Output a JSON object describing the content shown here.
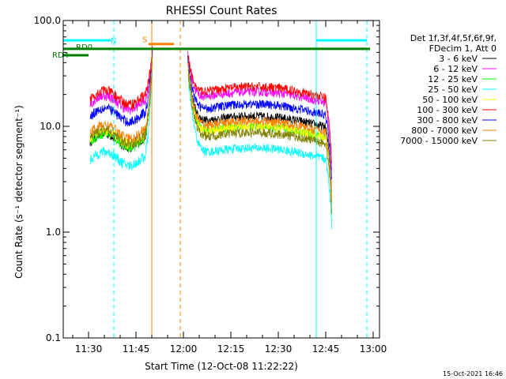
{
  "chart_data": {
    "type": "line",
    "title": "RHESSI Count Rates",
    "xlabel": "Start Time (12-Oct-08 11:22:22)",
    "ylabel": "Count Rate (s⁻¹ detector segment⁻¹)",
    "yscale": "log",
    "ylim": [
      0.1,
      100.0
    ],
    "xlim": [
      "11:22",
      "13:02"
    ],
    "x_ticks": [
      "11:30",
      "11:45",
      "12:00",
      "12:15",
      "12:30",
      "12:45",
      "13:00"
    ],
    "y_ticks": [
      "0.1",
      "1.0",
      "10.0",
      "100.0"
    ],
    "legend_header": [
      "Det 1f,3f,4f,5f,6f,9f,",
      "FDecim 1, Att 0"
    ],
    "legend_position": "right",
    "timestamp": "15-Oct-2021 16:46",
    "state_labels": [
      "N",
      "S",
      "RD0",
      "RD4"
    ],
    "state_bars": [
      {
        "label": "N",
        "color": "#00ffff",
        "y": 65,
        "segments": [
          [
            "11:22",
            "11:37"
          ],
          [
            "12:42",
            "12:58"
          ]
        ]
      },
      {
        "label": "S",
        "color": "#ff8000",
        "y": 60,
        "segments": [
          [
            "11:49",
            "11:57"
          ]
        ]
      },
      {
        "label": "RD0",
        "color": "#008000",
        "y": 54,
        "segments": [
          [
            "11:22",
            "12:59"
          ]
        ]
      },
      {
        "label": "RD4",
        "color": "#008000",
        "y": 47,
        "segments": [
          [
            "11:22",
            "11:30"
          ]
        ]
      }
    ],
    "vlines": [
      {
        "t": "11:22",
        "color": "#00ffff",
        "style": "solid"
      },
      {
        "t": "11:38",
        "color": "#00ffff",
        "style": "dashed"
      },
      {
        "t": "11:50",
        "color": "#ff8000",
        "style": "solid"
      },
      {
        "t": "11:59",
        "color": "#ff8000",
        "style": "dashed"
      },
      {
        "t": "12:42",
        "color": "#00ffff",
        "style": "solid"
      },
      {
        "t": "12:58",
        "color": "#00ffff",
        "style": "dashed"
      }
    ],
    "series": [
      {
        "name": "3 - 6 keV",
        "color": "#000000",
        "base": 7.5,
        "peak": 50,
        "post": 10
      },
      {
        "name": "6 - 12 keV",
        "color": "#ff00ff",
        "base": 17,
        "peak": 58,
        "post": 17
      },
      {
        "name": "12 - 25 keV",
        "color": "#00ff00",
        "base": 7.5,
        "peak": 50,
        "post": 8
      },
      {
        "name": "25 - 50 keV",
        "color": "#00ffff",
        "base": 5,
        "peak": 40,
        "post": 5
      },
      {
        "name": "50 - 100 keV",
        "color": "#ffff00",
        "base": 8,
        "peak": 45,
        "post": 8
      },
      {
        "name": "100 - 300 keV",
        "color": "#ff0000",
        "base": 19,
        "peak": 60,
        "post": 19
      },
      {
        "name": "300 - 800 keV",
        "color": "#0000ff",
        "base": 13,
        "peak": 55,
        "post": 13
      },
      {
        "name": "800 - 7000 keV",
        "color": "#ff8000",
        "base": 9,
        "peak": 50,
        "post": 9
      },
      {
        "name": "7000 - 15000 keV",
        "color": "#808000",
        "base": 8,
        "peak": 45,
        "post": 7
      }
    ],
    "gap": [
      "11:51",
      "12:01"
    ]
  }
}
